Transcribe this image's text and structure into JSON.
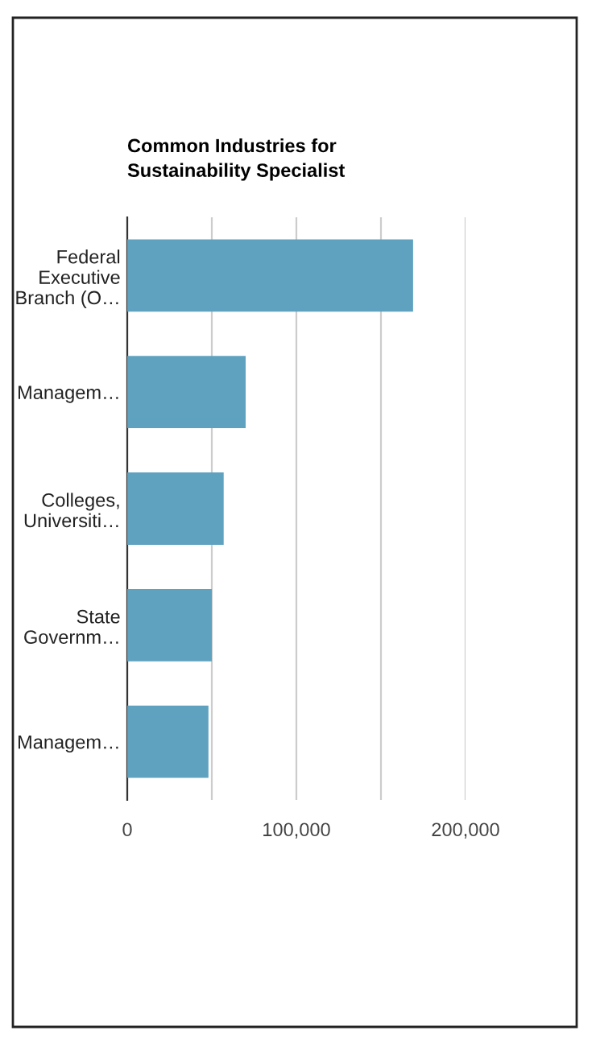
{
  "chart_data": {
    "type": "bar",
    "orientation": "horizontal",
    "title": "Common Industries for\nSustainability Specialist",
    "categories": [
      "Federal\nExecutive\nBranch (O…",
      "Managem…",
      "Colleges,\nUniversiti…",
      "State\nGovernm…",
      "Managem…"
    ],
    "values": [
      169000,
      70000,
      57000,
      50000,
      48000
    ],
    "color": "#5fa2bf",
    "xlim": [
      0,
      200000
    ],
    "xticks": [
      0,
      {
        "value": 50000,
        "label": null
      },
      {
        "value": 100000,
        "label": "100,000"
      },
      {
        "value": 150000,
        "label": null
      },
      {
        "value": 200000,
        "label": "200,000"
      }
    ],
    "grid": "x",
    "legend": false
  }
}
